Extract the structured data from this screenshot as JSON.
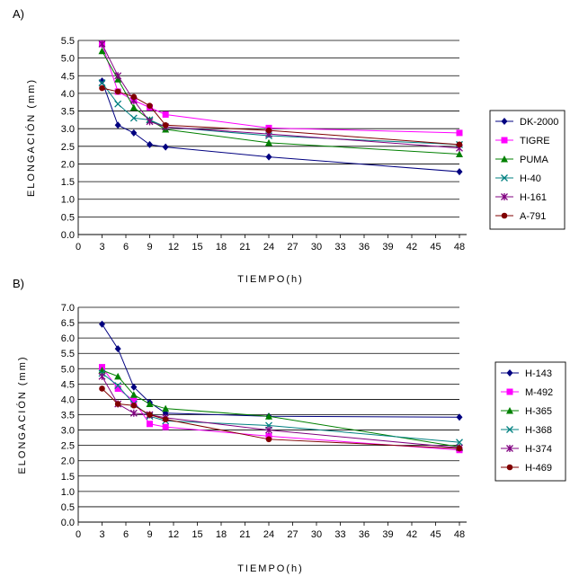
{
  "chart_data": [
    {
      "panel": "A)",
      "type": "line",
      "xlabel": "TIEMPO(h)",
      "ylabel": "ELONGACIÓN (mm)",
      "xlim": [
        0,
        48
      ],
      "ylim": [
        0,
        5.5
      ],
      "xticks": [
        "0",
        "3",
        "6",
        "9",
        "12",
        "15",
        "18",
        "21",
        "24",
        "27",
        "30",
        "33",
        "36",
        "39",
        "42",
        "45",
        "48"
      ],
      "yticks": [
        "0.0",
        "0.5",
        "1.0",
        "1.5",
        "2.0",
        "2.5",
        "3.0",
        "3.5",
        "4.0",
        "4.5",
        "5.0",
        "5.5"
      ],
      "grid": "horizontal",
      "legend_position": "right",
      "x": [
        3,
        5,
        7,
        9,
        11,
        24,
        48
      ],
      "series": [
        {
          "name": "DK-2000",
          "color": "#000080",
          "marker": "diamond",
          "values": [
            4.35,
            3.1,
            2.88,
            2.55,
            2.48,
            2.2,
            1.78
          ]
        },
        {
          "name": "TIGRE",
          "color": "#ff00ff",
          "marker": "square",
          "values": [
            5.4,
            4.05,
            3.8,
            3.6,
            3.4,
            3.02,
            2.88
          ]
        },
        {
          "name": "PUMA",
          "color": "#008000",
          "marker": "triangle",
          "values": [
            5.2,
            4.4,
            3.6,
            3.25,
            2.98,
            2.6,
            2.28
          ]
        },
        {
          "name": "H-40",
          "color": "#008080",
          "marker": "x",
          "values": [
            4.3,
            3.7,
            3.3,
            3.25,
            3.05,
            2.8,
            2.55
          ]
        },
        {
          "name": "H-161",
          "color": "#800080",
          "marker": "star",
          "values": [
            5.4,
            4.5,
            3.8,
            3.2,
            3.05,
            2.85,
            2.45
          ]
        },
        {
          "name": "A-791",
          "color": "#800000",
          "marker": "circle",
          "values": [
            4.15,
            4.05,
            3.9,
            3.65,
            3.1,
            2.95,
            2.55
          ]
        }
      ]
    },
    {
      "panel": "B)",
      "type": "line",
      "xlabel": "TIEMPO(h)",
      "ylabel": "ELONGACIÓN (mm)",
      "xlim": [
        0,
        48
      ],
      "ylim": [
        0,
        7.0
      ],
      "xticks": [
        "0",
        "3",
        "6",
        "9",
        "12",
        "15",
        "18",
        "21",
        "24",
        "27",
        "30",
        "33",
        "36",
        "39",
        "42",
        "45",
        "48"
      ],
      "yticks": [
        "0.0",
        "0.5",
        "1.0",
        "1.5",
        "2.0",
        "2.5",
        "3.0",
        "3.5",
        "4.0",
        "4.5",
        "5.0",
        "5.5",
        "6.0",
        "6.5",
        "7.0"
      ],
      "grid": "horizontal",
      "legend_position": "right",
      "x": [
        3,
        5,
        7,
        9,
        11,
        24,
        48
      ],
      "series": [
        {
          "name": "H-143",
          "color": "#000080",
          "marker": "diamond",
          "values": [
            6.45,
            5.65,
            4.4,
            3.9,
            3.55,
            3.45,
            3.42
          ]
        },
        {
          "name": "M-492",
          "color": "#ff00ff",
          "marker": "square",
          "values": [
            5.05,
            4.35,
            3.95,
            3.2,
            3.1,
            2.8,
            2.35
          ]
        },
        {
          "name": "H-365",
          "color": "#008000",
          "marker": "triangle",
          "values": [
            4.95,
            4.75,
            4.15,
            3.85,
            3.7,
            3.45,
            2.45
          ]
        },
        {
          "name": "H-368",
          "color": "#008080",
          "marker": "x",
          "values": [
            4.85,
            4.45,
            3.85,
            3.45,
            3.3,
            3.15,
            2.6
          ]
        },
        {
          "name": "H-374",
          "color": "#800080",
          "marker": "star",
          "values": [
            4.75,
            3.85,
            3.55,
            3.5,
            3.4,
            3.0,
            2.42
          ]
        },
        {
          "name": "H-469",
          "color": "#800000",
          "marker": "circle",
          "values": [
            4.35,
            3.85,
            3.8,
            3.5,
            3.35,
            2.7,
            2.4
          ]
        }
      ]
    }
  ]
}
